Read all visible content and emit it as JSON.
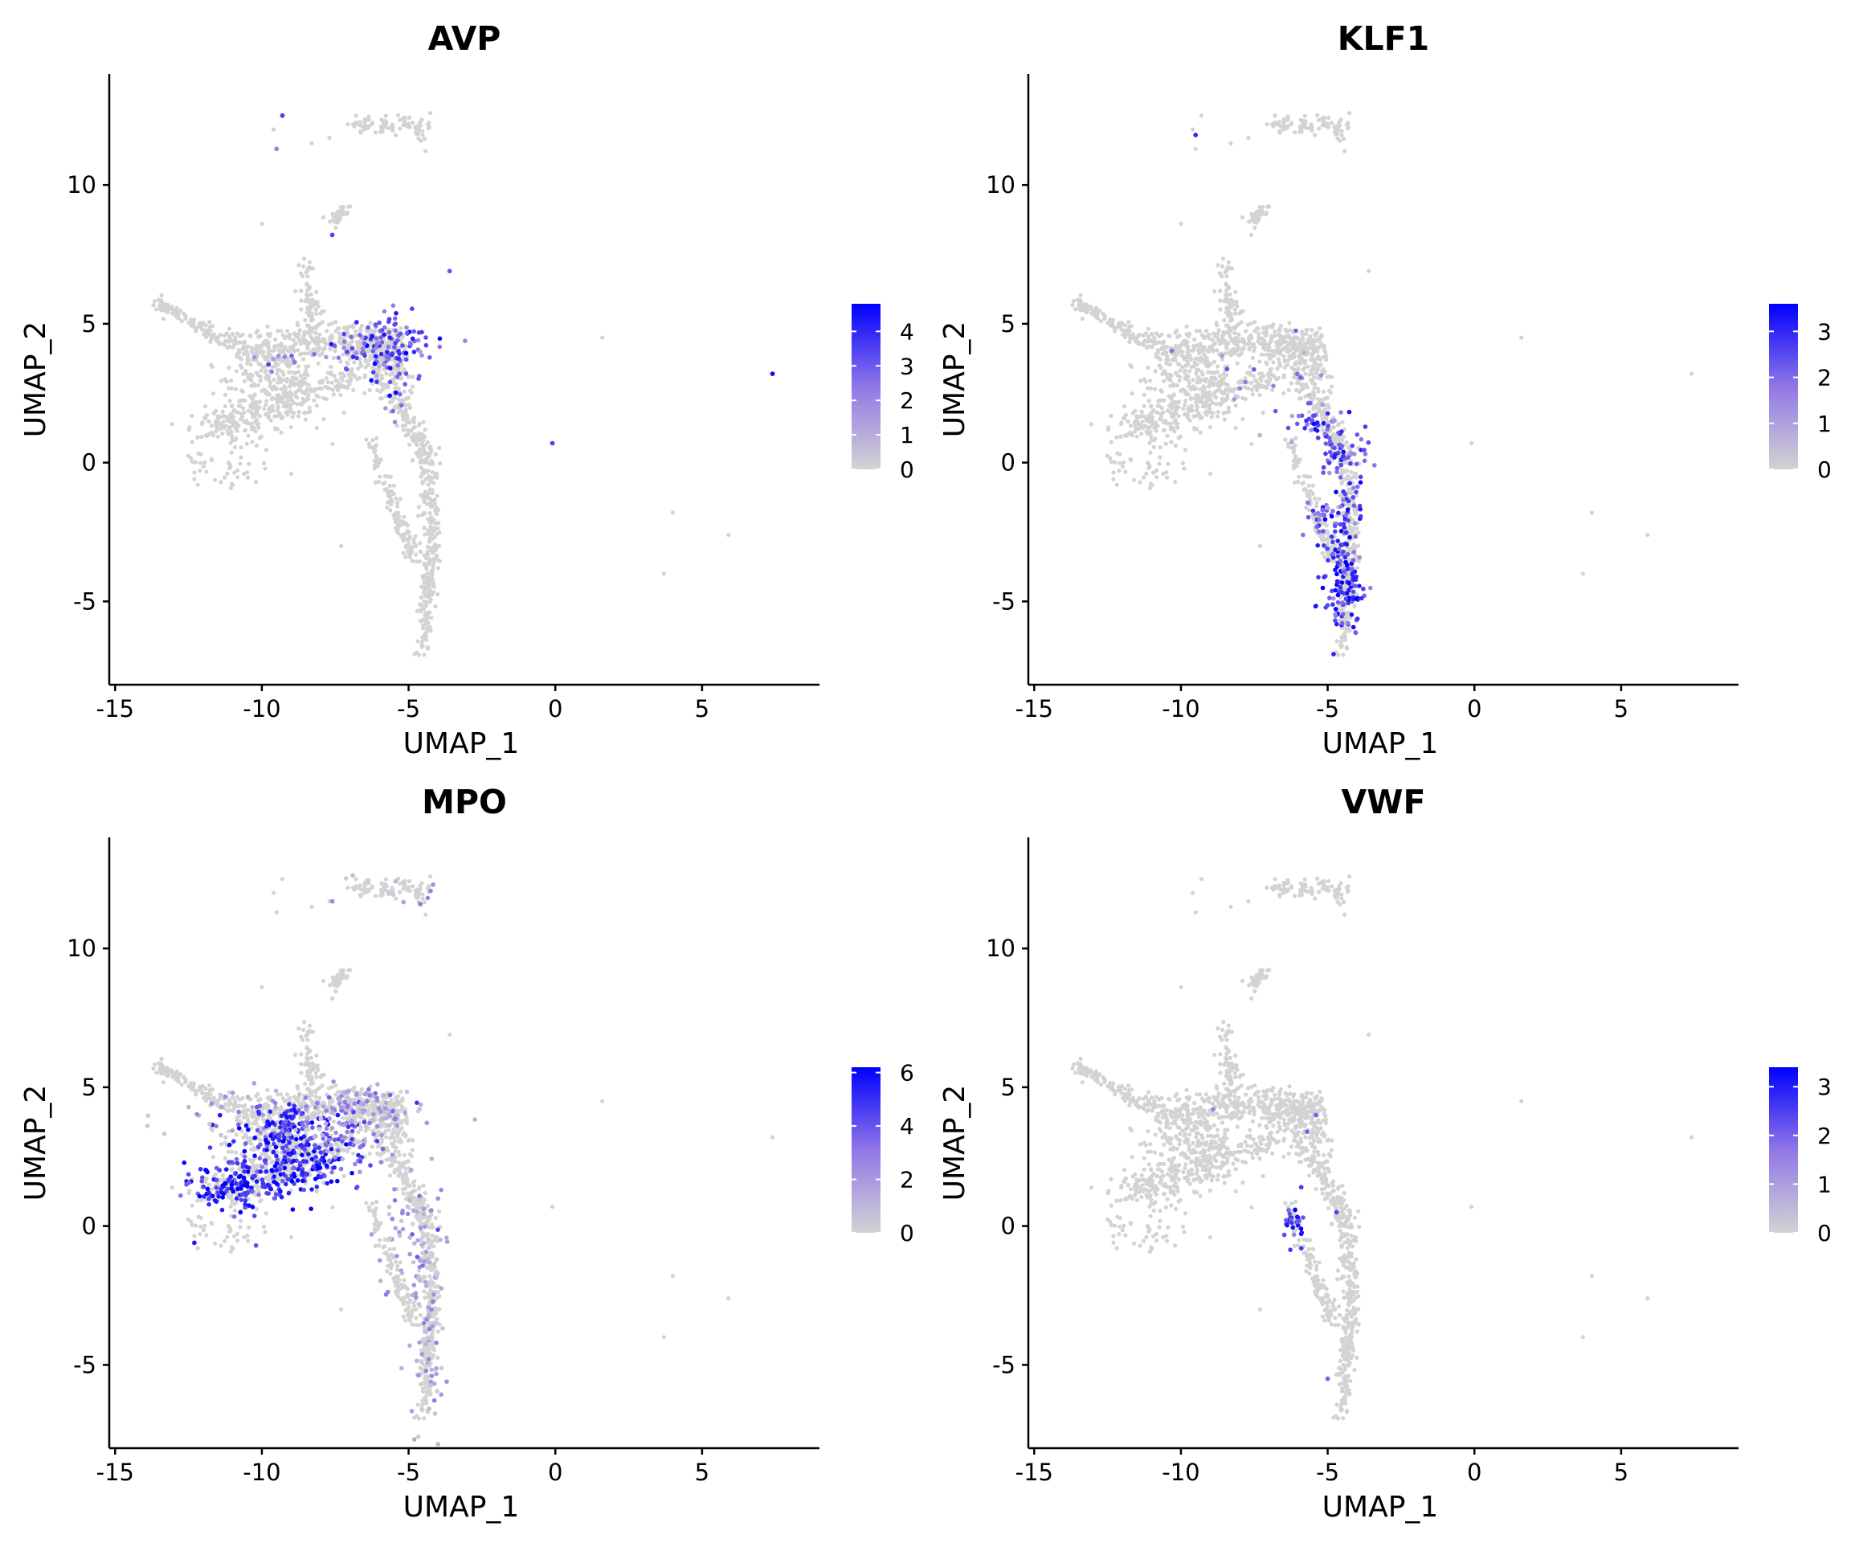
{
  "figure": {
    "background": "#ffffff"
  },
  "chart_data": [
    {
      "type": "scatter",
      "title": "AVP",
      "xlabel": "UMAP_1",
      "ylabel": "UMAP_2",
      "xlim": [
        -15.2,
        9
      ],
      "ylim": [
        -8,
        14
      ],
      "xticks": [
        -15,
        -10,
        -5,
        0,
        5
      ],
      "yticks": [
        -5,
        0,
        5,
        10
      ],
      "color_low": "#d3d3d3",
      "color_high": "#0000ff",
      "legend": {
        "max": 4.8,
        "ticks": [
          0,
          1,
          2,
          3,
          4
        ],
        "placement": "right"
      },
      "grid": false,
      "hotspots": [
        {
          "x": -5.9,
          "y": 4.1,
          "spread_x": 0.8,
          "spread_y": 0.6,
          "n": 140,
          "value": 3.2
        },
        {
          "x": -9.5,
          "y": 3.9,
          "spread_x": 0.4,
          "spread_y": 0.3,
          "n": 10,
          "value": 1.8
        },
        {
          "x": -5.4,
          "y": 2.2,
          "spread_x": 0.3,
          "spread_y": 0.4,
          "n": 6,
          "value": 2.5
        }
      ],
      "highlight_points": [
        {
          "x": -9.3,
          "y": 12.5,
          "value": 3.5
        },
        {
          "x": -9.5,
          "y": 11.3,
          "value": 2
        },
        {
          "x": -7.6,
          "y": 8.2,
          "value": 3.5
        },
        {
          "x": -3.6,
          "y": 6.9,
          "value": 3
        },
        {
          "x": 7.4,
          "y": 3.2,
          "value": 4.5
        },
        {
          "x": -0.1,
          "y": 0.7,
          "value": 3.5
        }
      ]
    },
    {
      "type": "scatter",
      "title": "KLF1",
      "xlabel": "UMAP_1",
      "ylabel": "UMAP_2",
      "xlim": [
        -15.2,
        9
      ],
      "ylim": [
        -8,
        14
      ],
      "xticks": [
        -15,
        -10,
        -5,
        0,
        5
      ],
      "yticks": [
        -5,
        0,
        5,
        10
      ],
      "color_low": "#d3d3d3",
      "color_high": "#0000ff",
      "legend": {
        "max": 3.6,
        "ticks": [
          0,
          1,
          2,
          3
        ],
        "placement": "right"
      },
      "grid": false,
      "hotspots": [
        {
          "x": -4.4,
          "y": -4.6,
          "spread_x": 0.3,
          "spread_y": 0.8,
          "n": 90,
          "value": 2.8
        },
        {
          "x": -4.4,
          "y": -2.5,
          "spread_x": 0.3,
          "spread_y": 1.2,
          "n": 80,
          "value": 2.6
        },
        {
          "x": -4.6,
          "y": 0.5,
          "spread_x": 0.4,
          "spread_y": 0.5,
          "n": 50,
          "value": 2.5
        },
        {
          "x": -5.4,
          "y": 1.5,
          "spread_x": 0.6,
          "spread_y": 0.3,
          "n": 30,
          "value": 2.2
        },
        {
          "x": -5.2,
          "y": -1.8,
          "spread_x": 0.3,
          "spread_y": 0.4,
          "n": 30,
          "value": 2.3
        },
        {
          "x": -6.5,
          "y": 3.0,
          "spread_x": 1.2,
          "spread_y": 1.0,
          "n": 20,
          "value": 1.5
        }
      ],
      "highlight_points": [
        {
          "x": -9.5,
          "y": 11.8,
          "value": 3
        },
        {
          "x": -4.8,
          "y": -6.9,
          "value": 3
        }
      ]
    },
    {
      "type": "scatter",
      "title": "MPO",
      "xlabel": "UMAP_1",
      "ylabel": "UMAP_2",
      "xlim": [
        -15.2,
        9
      ],
      "ylim": [
        -8,
        14
      ],
      "xticks": [
        -15,
        -10,
        -5,
        0,
        5
      ],
      "yticks": [
        -5,
        0,
        5,
        10
      ],
      "color_low": "#d3d3d3",
      "color_high": "#0000ff",
      "legend": {
        "max": 6.2,
        "ticks": [
          0,
          2,
          4,
          6
        ],
        "placement": "right"
      },
      "grid": false,
      "hotspots": [
        {
          "x": -10.8,
          "y": 1.5,
          "spread_x": 0.9,
          "spread_y": 0.4,
          "n": 140,
          "value": 5.2
        },
        {
          "x": -8.8,
          "y": 2.5,
          "spread_x": 1.0,
          "spread_y": 0.6,
          "n": 190,
          "value": 5.0
        },
        {
          "x": -9.3,
          "y": 3.6,
          "spread_x": 0.5,
          "spread_y": 0.4,
          "n": 80,
          "value": 4.8
        },
        {
          "x": -7.0,
          "y": 3.4,
          "spread_x": 0.8,
          "spread_y": 0.7,
          "n": 70,
          "value": 3.2
        },
        {
          "x": -6.0,
          "y": 4.3,
          "spread_x": 0.9,
          "spread_y": 0.4,
          "n": 60,
          "value": 2.0
        },
        {
          "x": -4.3,
          "y": -3.0,
          "spread_x": 0.3,
          "spread_y": 1.8,
          "n": 80,
          "value": 1.6
        },
        {
          "x": -5.0,
          "y": 0.0,
          "spread_x": 0.6,
          "spread_y": 1.2,
          "n": 50,
          "value": 1.4
        },
        {
          "x": -9.0,
          "y": 4.2,
          "spread_x": 2.0,
          "spread_y": 0.5,
          "n": 60,
          "value": 1.8
        },
        {
          "x": -6.0,
          "y": 12.2,
          "spread_x": 1.2,
          "spread_y": 0.3,
          "n": 10,
          "value": 1.2
        }
      ],
      "highlight_points": [
        {
          "x": -12.3,
          "y": -0.6,
          "value": 5.5
        },
        {
          "x": -10.2,
          "y": -0.7,
          "value": 4
        },
        {
          "x": -4.6,
          "y": 11.6,
          "value": 3
        },
        {
          "x": -7.6,
          "y": 11.7,
          "value": 2.5
        }
      ]
    },
    {
      "type": "scatter",
      "title": "VWF",
      "xlabel": "UMAP_1",
      "ylabel": "UMAP_2",
      "xlim": [
        -15.2,
        9
      ],
      "ylim": [
        -8,
        14
      ],
      "xticks": [
        -15,
        -10,
        -5,
        0,
        5
      ],
      "yticks": [
        -5,
        0,
        5,
        10
      ],
      "color_low": "#d3d3d3",
      "color_high": "#0000ff",
      "legend": {
        "max": 3.4,
        "ticks": [
          0,
          1,
          2,
          3
        ],
        "placement": "right"
      },
      "grid": false,
      "hotspots": [
        {
          "x": -6.2,
          "y": 0.1,
          "spread_x": 0.25,
          "spread_y": 0.35,
          "n": 25,
          "value": 2.6
        }
      ],
      "highlight_points": [
        {
          "x": -5.9,
          "y": 1.4,
          "value": 2.5
        },
        {
          "x": -4.7,
          "y": 0.5,
          "value": 2.5
        },
        {
          "x": -5.7,
          "y": 3.4,
          "value": 2
        },
        {
          "x": -5.4,
          "y": 4.0,
          "value": 2
        },
        {
          "x": -5.9,
          "y": -0.8,
          "value": 2.5
        },
        {
          "x": -8.9,
          "y": 4.2,
          "value": 1.5
        },
        {
          "x": -5.0,
          "y": -5.5,
          "value": 2
        }
      ]
    }
  ]
}
